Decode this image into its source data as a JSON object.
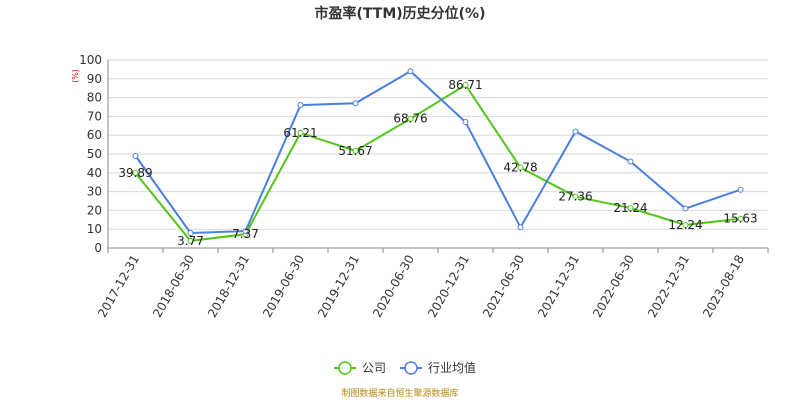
{
  "chart_data": {
    "type": "line",
    "title": "市盈率(TTM)历史分位(%)",
    "unit_label": "(%)",
    "categories": [
      "2017-12-31",
      "2018-06-30",
      "2018-12-31",
      "2019-06-30",
      "2019-12-31",
      "2020-06-30",
      "2020-12-31",
      "2021-06-30",
      "2021-12-31",
      "2022-06-30",
      "2022-12-31",
      "2023-08-18"
    ],
    "ylim": [
      0,
      100
    ],
    "yticks": [
      0,
      10,
      20,
      30,
      40,
      50,
      60,
      70,
      80,
      90,
      100
    ],
    "grid": true,
    "legend_position": "bottom-center",
    "series": [
      {
        "name": "公司",
        "color": "#52c41a",
        "values": [
          39.89,
          3.77,
          7.37,
          61.21,
          51.67,
          68.76,
          86.71,
          42.78,
          27.36,
          21.24,
          12.24,
          15.63
        ],
        "labels": [
          "39.89",
          "3.77",
          "7.37",
          "61.21",
          "51.67",
          "68.76",
          "86.71",
          "42.78",
          "27.36",
          "21.24",
          "12.24",
          "15.63"
        ]
      },
      {
        "name": "行业均值",
        "color": "#4a7fdc",
        "values": [
          49,
          8,
          9,
          76,
          77,
          94,
          67,
          11,
          62,
          46,
          21,
          31
        ]
      }
    ],
    "source": "制图数据来自恒生聚源数据库"
  }
}
